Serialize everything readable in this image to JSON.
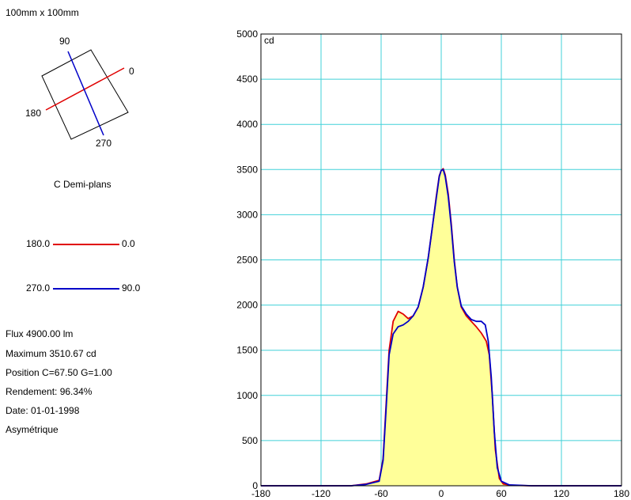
{
  "header": {
    "size_label": "100mm x 100mm"
  },
  "diagram": {
    "label_90": "90",
    "label_0": "0",
    "label_180": "180",
    "label_270": "270",
    "caption": "C Demi-plans"
  },
  "legend": {
    "items": [
      {
        "left": "180.0",
        "right": "0.0",
        "color": "#e00000"
      },
      {
        "left": "270.0",
        "right": "90.0",
        "color": "#0000c8"
      }
    ]
  },
  "info": {
    "flux": "Flux 4900.00  lm",
    "maximum": "Maximum 3510.67  cd",
    "position": "Position C=67.50 G=1.00",
    "rendement": "Rendement:  96.34%",
    "date": "Date: 01-01-1998",
    "symmetry": "Asymétrique"
  },
  "chart_data": {
    "type": "line",
    "unit_label": "cd",
    "xlim": [
      -180,
      180
    ],
    "ylim": [
      0,
      5000
    ],
    "x_ticks": [
      -180,
      -120,
      -60,
      0,
      60,
      120,
      180
    ],
    "y_ticks": [
      0,
      500,
      1000,
      1500,
      2000,
      2500,
      3000,
      3500,
      4000,
      4500,
      5000
    ],
    "grid": true,
    "grid_color": "#40d0d8",
    "fill_color": "#ffff99",
    "series": [
      {
        "name": "180.0 - 0.0",
        "color": "#e00000",
        "points": [
          [
            -180,
            0
          ],
          [
            -90,
            0
          ],
          [
            -75,
            20
          ],
          [
            -62,
            60
          ],
          [
            -58,
            300
          ],
          [
            -55,
            900
          ],
          [
            -52,
            1500
          ],
          [
            -48,
            1820
          ],
          [
            -43,
            1930
          ],
          [
            -38,
            1900
          ],
          [
            -33,
            1850
          ],
          [
            -28,
            1880
          ],
          [
            -23,
            1980
          ],
          [
            -18,
            2200
          ],
          [
            -13,
            2520
          ],
          [
            -9,
            2850
          ],
          [
            -5,
            3200
          ],
          [
            -2,
            3430
          ],
          [
            0,
            3490
          ],
          [
            2,
            3510
          ],
          [
            4,
            3440
          ],
          [
            7,
            3230
          ],
          [
            10,
            2900
          ],
          [
            13,
            2500
          ],
          [
            16,
            2200
          ],
          [
            20,
            1980
          ],
          [
            25,
            1880
          ],
          [
            30,
            1820
          ],
          [
            35,
            1760
          ],
          [
            40,
            1690
          ],
          [
            45,
            1600
          ],
          [
            48,
            1450
          ],
          [
            51,
            1000
          ],
          [
            54,
            400
          ],
          [
            58,
            80
          ],
          [
            62,
            20
          ],
          [
            70,
            5
          ],
          [
            90,
            0
          ],
          [
            180,
            0
          ]
        ]
      },
      {
        "name": "270.0 - 90.0",
        "color": "#0000c8",
        "points": [
          [
            -180,
            0
          ],
          [
            -90,
            0
          ],
          [
            -75,
            15
          ],
          [
            -62,
            50
          ],
          [
            -58,
            280
          ],
          [
            -55,
            850
          ],
          [
            -52,
            1450
          ],
          [
            -48,
            1680
          ],
          [
            -43,
            1760
          ],
          [
            -38,
            1780
          ],
          [
            -33,
            1820
          ],
          [
            -28,
            1880
          ],
          [
            -23,
            1980
          ],
          [
            -18,
            2200
          ],
          [
            -13,
            2520
          ],
          [
            -9,
            2850
          ],
          [
            -5,
            3180
          ],
          [
            -2,
            3420
          ],
          [
            0,
            3490
          ],
          [
            2,
            3500
          ],
          [
            4,
            3420
          ],
          [
            7,
            3200
          ],
          [
            10,
            2870
          ],
          [
            13,
            2480
          ],
          [
            16,
            2200
          ],
          [
            20,
            1990
          ],
          [
            25,
            1900
          ],
          [
            30,
            1840
          ],
          [
            35,
            1820
          ],
          [
            40,
            1820
          ],
          [
            44,
            1780
          ],
          [
            47,
            1600
          ],
          [
            50,
            1200
          ],
          [
            53,
            600
          ],
          [
            56,
            200
          ],
          [
            60,
            50
          ],
          [
            68,
            10
          ],
          [
            90,
            0
          ],
          [
            180,
            0
          ]
        ]
      }
    ]
  }
}
